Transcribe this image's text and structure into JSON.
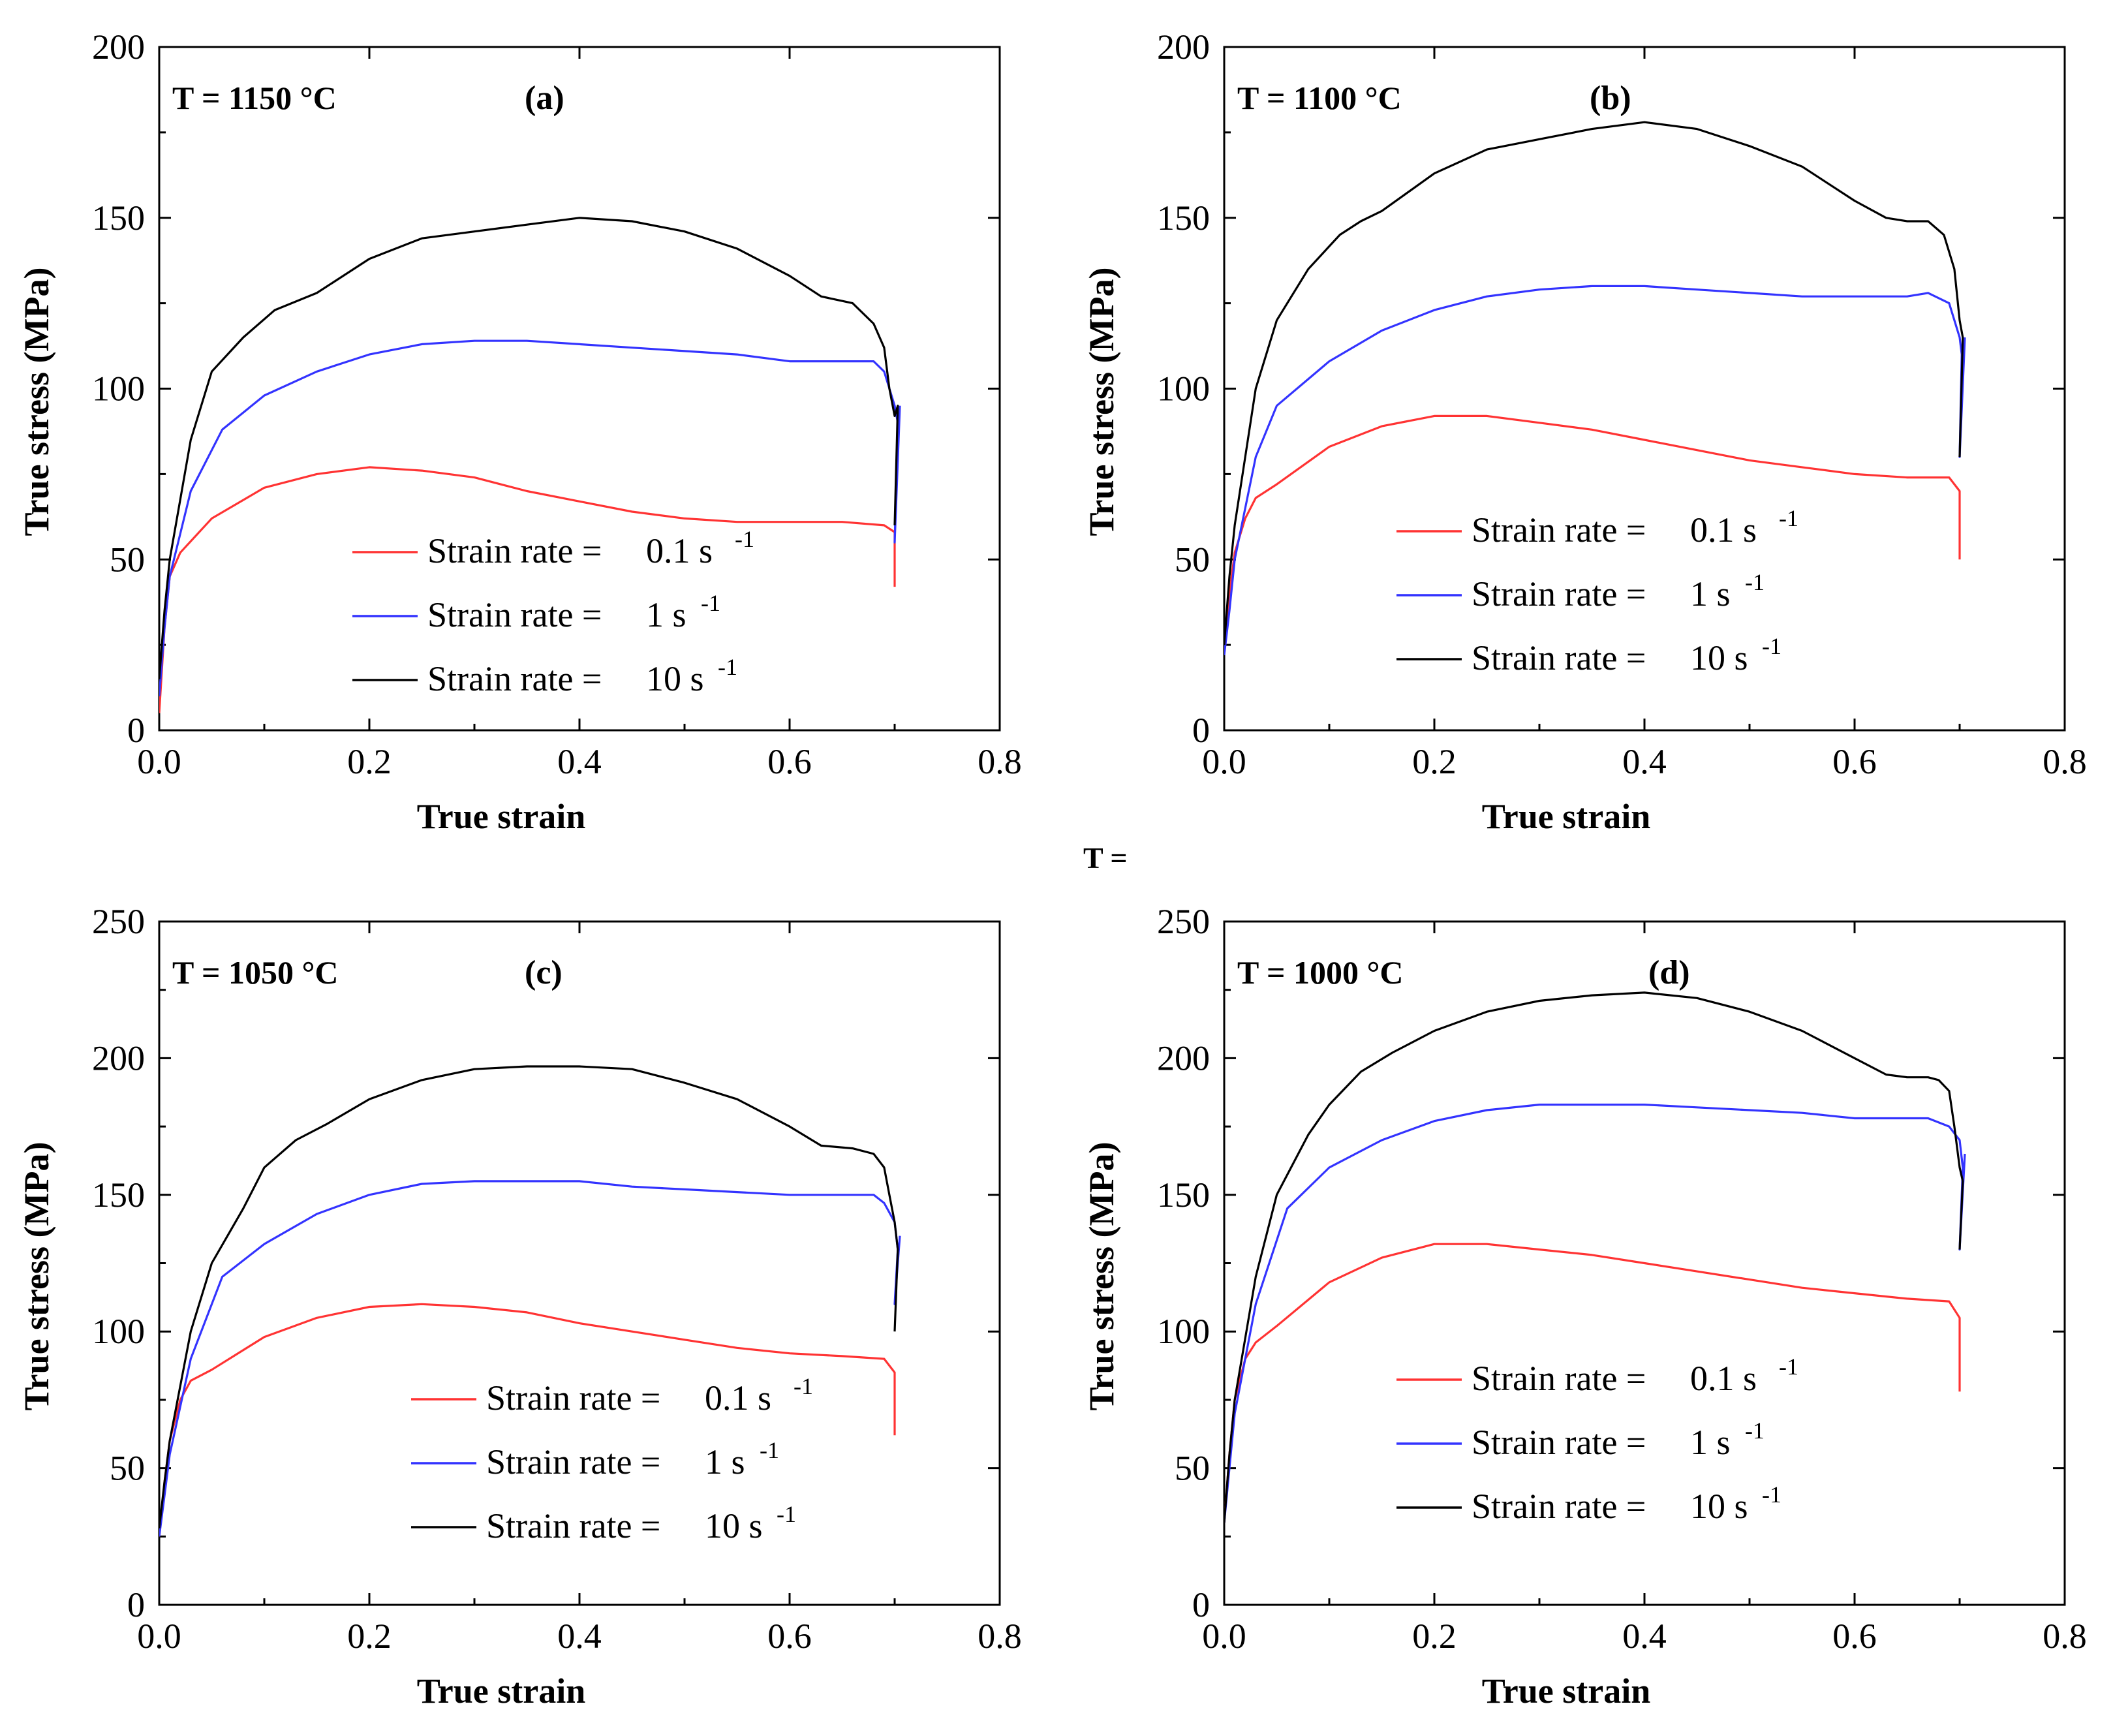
{
  "figure": {
    "stray_text": "T ="
  },
  "chart_data": [
    {
      "type": "line",
      "panel_label": "(a)",
      "temperature_label": "T = 1150 °C",
      "xlabel": "True strain",
      "ylabel": "True stress (MPa)",
      "xlim": [
        0,
        0.8
      ],
      "ylim": [
        0,
        200
      ],
      "xticks": [
        0.0,
        0.2,
        0.4,
        0.6,
        0.8
      ],
      "xtick_labels": [
        "0.0",
        "0.2",
        "0.4",
        "0.6",
        "0.8"
      ],
      "yticks": [
        0,
        50,
        100,
        150,
        200
      ],
      "ytick_labels": [
        "0",
        "50",
        "100",
        "150",
        "200"
      ],
      "legend_position": "lower-center",
      "series": [
        {
          "name": "Strain rate = 0.1 s-1",
          "legend_prefix": "Strain rate =",
          "legend_value": "0.1 s",
          "legend_sup": "-1",
          "color": "#ff3333",
          "x": [
            0,
            0.005,
            0.01,
            0.02,
            0.05,
            0.1,
            0.15,
            0.2,
            0.25,
            0.3,
            0.35,
            0.4,
            0.45,
            0.5,
            0.55,
            0.6,
            0.65,
            0.69,
            0.7,
            0.7
          ],
          "y": [
            5,
            30,
            45,
            52,
            62,
            71,
            75,
            77,
            76,
            74,
            70,
            67,
            64,
            62,
            61,
            61,
            61,
            60,
            58,
            42
          ]
        },
        {
          "name": "Strain rate = 1 s-1",
          "legend_prefix": "Strain rate =",
          "legend_value": "1 s",
          "legend_sup": "-1",
          "color": "#3333ff",
          "x": [
            0,
            0.005,
            0.01,
            0.03,
            0.06,
            0.1,
            0.15,
            0.2,
            0.25,
            0.3,
            0.35,
            0.4,
            0.45,
            0.5,
            0.55,
            0.6,
            0.65,
            0.68,
            0.69,
            0.7,
            0.703,
            0.7,
            0.705
          ],
          "y": [
            10,
            30,
            45,
            70,
            88,
            98,
            105,
            110,
            113,
            114,
            114,
            113,
            112,
            111,
            110,
            108,
            108,
            108,
            105,
            95,
            90,
            55,
            95
          ]
        },
        {
          "name": "Strain rate = 10 s-1",
          "legend_prefix": "Strain rate =",
          "legend_value": "10 s",
          "legend_sup": "-1",
          "color": "#000000",
          "x": [
            0,
            0.005,
            0.01,
            0.03,
            0.05,
            0.08,
            0.11,
            0.15,
            0.2,
            0.25,
            0.3,
            0.35,
            0.4,
            0.45,
            0.5,
            0.55,
            0.6,
            0.63,
            0.66,
            0.68,
            0.69,
            0.695,
            0.7,
            0.703,
            0.7
          ],
          "y": [
            15,
            35,
            50,
            85,
            105,
            115,
            123,
            128,
            138,
            144,
            146,
            148,
            150,
            149,
            146,
            141,
            133,
            127,
            125,
            119,
            112,
            100,
            92,
            95,
            60
          ]
        }
      ]
    },
    {
      "type": "line",
      "panel_label": "(b)",
      "temperature_label": "T = 1100 °C",
      "xlabel": "True strain",
      "ylabel": "True stress (MPa)",
      "xlim": [
        0,
        0.8
      ],
      "ylim": [
        0,
        200
      ],
      "xticks": [
        0.0,
        0.2,
        0.4,
        0.6,
        0.8
      ],
      "xtick_labels": [
        "0.0",
        "0.2",
        "0.4",
        "0.6",
        "0.8"
      ],
      "yticks": [
        0,
        50,
        100,
        150,
        200
      ],
      "ytick_labels": [
        "0",
        "50",
        "100",
        "150",
        "200"
      ],
      "legend_position": "lower-right",
      "series": [
        {
          "name": "Strain rate = 0.1 s-1",
          "legend_prefix": "Strain rate =",
          "legend_value": "0.1 s",
          "legend_sup": "-1",
          "color": "#ff3333",
          "x": [
            0,
            0.005,
            0.01,
            0.02,
            0.03,
            0.05,
            0.1,
            0.15,
            0.2,
            0.25,
            0.3,
            0.35,
            0.4,
            0.45,
            0.5,
            0.55,
            0.6,
            0.65,
            0.69,
            0.7,
            0.7
          ],
          "y": [
            25,
            40,
            52,
            62,
            68,
            72,
            83,
            89,
            92,
            92,
            90,
            88,
            85,
            82,
            79,
            77,
            75,
            74,
            74,
            70,
            50
          ]
        },
        {
          "name": "Strain rate = 1 s-1",
          "legend_prefix": "Strain rate =",
          "legend_value": "1 s",
          "legend_sup": "-1",
          "color": "#3333ff",
          "x": [
            0,
            0.005,
            0.01,
            0.03,
            0.05,
            0.1,
            0.15,
            0.2,
            0.25,
            0.3,
            0.35,
            0.4,
            0.45,
            0.5,
            0.55,
            0.6,
            0.65,
            0.67,
            0.69,
            0.7,
            0.702,
            0.7,
            0.705
          ],
          "y": [
            22,
            35,
            50,
            80,
            95,
            108,
            117,
            123,
            127,
            129,
            130,
            130,
            129,
            128,
            127,
            127,
            127,
            128,
            125,
            115,
            110,
            80,
            115
          ]
        },
        {
          "name": "Strain rate = 10 s-1",
          "legend_prefix": "Strain rate =",
          "legend_value": "10 s",
          "legend_sup": "-1",
          "color": "#000000",
          "x": [
            0,
            0.005,
            0.01,
            0.03,
            0.05,
            0.08,
            0.11,
            0.13,
            0.15,
            0.2,
            0.25,
            0.3,
            0.35,
            0.4,
            0.45,
            0.5,
            0.55,
            0.6,
            0.63,
            0.65,
            0.67,
            0.685,
            0.695,
            0.7,
            0.703,
            0.7
          ],
          "y": [
            25,
            45,
            60,
            100,
            120,
            135,
            145,
            149,
            152,
            163,
            170,
            173,
            176,
            178,
            176,
            171,
            165,
            155,
            150,
            149,
            149,
            145,
            135,
            120,
            115,
            80
          ]
        }
      ]
    },
    {
      "type": "line",
      "panel_label": "(c)",
      "temperature_label": "T = 1050 °C",
      "xlabel": "True strain",
      "ylabel": "True stress (MPa)",
      "xlim": [
        0,
        0.8
      ],
      "ylim": [
        0,
        250
      ],
      "xticks": [
        0.0,
        0.2,
        0.4,
        0.6,
        0.8
      ],
      "xtick_labels": [
        "0.0",
        "0.2",
        "0.4",
        "0.6",
        "0.8"
      ],
      "yticks": [
        0,
        50,
        100,
        150,
        200,
        250
      ],
      "ytick_labels": [
        "0",
        "50",
        "100",
        "150",
        "200",
        "250"
      ],
      "legend_position": "lower-right",
      "series": [
        {
          "name": "Strain rate = 0.1 s-1",
          "legend_prefix": "Strain rate =",
          "legend_value": "0.1 s",
          "legend_sup": "-1",
          "color": "#ff3333",
          "x": [
            0,
            0.005,
            0.01,
            0.02,
            0.03,
            0.05,
            0.1,
            0.15,
            0.2,
            0.25,
            0.3,
            0.35,
            0.4,
            0.45,
            0.5,
            0.55,
            0.6,
            0.65,
            0.69,
            0.7,
            0.7
          ],
          "y": [
            25,
            45,
            60,
            75,
            82,
            86,
            98,
            105,
            109,
            110,
            109,
            107,
            103,
            100,
            97,
            94,
            92,
            91,
            90,
            85,
            62
          ]
        },
        {
          "name": "Strain rate = 1 s-1",
          "legend_prefix": "Strain rate =",
          "legend_value": "1 s",
          "legend_sup": "-1",
          "color": "#3333ff",
          "x": [
            0,
            0.005,
            0.01,
            0.03,
            0.06,
            0.1,
            0.15,
            0.2,
            0.25,
            0.3,
            0.35,
            0.4,
            0.45,
            0.5,
            0.55,
            0.6,
            0.65,
            0.68,
            0.69,
            0.7,
            0.703,
            0.7,
            0.705
          ],
          "y": [
            25,
            40,
            55,
            90,
            120,
            132,
            143,
            150,
            154,
            155,
            155,
            155,
            153,
            152,
            151,
            150,
            150,
            150,
            147,
            140,
            130,
            110,
            135
          ]
        },
        {
          "name": "Strain rate = 10 s-1",
          "legend_prefix": "Strain rate =",
          "legend_value": "10 s",
          "legend_sup": "-1",
          "color": "#000000",
          "x": [
            0,
            0.005,
            0.01,
            0.03,
            0.05,
            0.08,
            0.1,
            0.13,
            0.16,
            0.2,
            0.25,
            0.3,
            0.35,
            0.4,
            0.45,
            0.5,
            0.55,
            0.6,
            0.63,
            0.66,
            0.68,
            0.69,
            0.695,
            0.7,
            0.703,
            0.7
          ],
          "y": [
            28,
            45,
            60,
            100,
            125,
            145,
            160,
            170,
            176,
            185,
            192,
            196,
            197,
            197,
            196,
            191,
            185,
            175,
            168,
            167,
            165,
            160,
            150,
            140,
            130,
            100
          ]
        }
      ]
    },
    {
      "type": "line",
      "panel_label": "(d)",
      "temperature_label": "T = 1000 °C",
      "xlabel": "True strain",
      "ylabel": "True stress (MPa)",
      "xlim": [
        0,
        0.8
      ],
      "ylim": [
        0,
        250
      ],
      "xticks": [
        0.0,
        0.2,
        0.4,
        0.6,
        0.8
      ],
      "xtick_labels": [
        "0.0",
        "0.2",
        "0.4",
        "0.6",
        "0.8"
      ],
      "yticks": [
        0,
        50,
        100,
        150,
        200,
        250
      ],
      "ytick_labels": [
        "0",
        "50",
        "100",
        "150",
        "200",
        "250"
      ],
      "legend_position": "lower-right",
      "series": [
        {
          "name": "Strain rate = 0.1 s-1",
          "legend_prefix": "Strain rate =",
          "legend_value": "0.1 s",
          "legend_sup": "-1",
          "color": "#ff3333",
          "x": [
            0,
            0.005,
            0.01,
            0.02,
            0.03,
            0.05,
            0.1,
            0.15,
            0.2,
            0.25,
            0.3,
            0.35,
            0.4,
            0.45,
            0.5,
            0.55,
            0.6,
            0.65,
            0.69,
            0.7,
            0.7
          ],
          "y": [
            30,
            55,
            75,
            90,
            96,
            102,
            118,
            127,
            132,
            132,
            130,
            128,
            125,
            122,
            119,
            116,
            114,
            112,
            111,
            105,
            78
          ]
        },
        {
          "name": "Strain rate = 1 s-1",
          "legend_prefix": "Strain rate =",
          "legend_value": "1 s",
          "legend_sup": "-1",
          "color": "#3333ff",
          "x": [
            0,
            0.005,
            0.01,
            0.03,
            0.06,
            0.1,
            0.15,
            0.2,
            0.25,
            0.3,
            0.35,
            0.4,
            0.45,
            0.5,
            0.55,
            0.6,
            0.65,
            0.67,
            0.69,
            0.7,
            0.703,
            0.7,
            0.705
          ],
          "y": [
            30,
            50,
            70,
            110,
            145,
            160,
            170,
            177,
            181,
            183,
            183,
            183,
            182,
            181,
            180,
            178,
            178,
            178,
            175,
            170,
            160,
            130,
            165
          ]
        },
        {
          "name": "Strain rate = 10 s-1",
          "legend_prefix": "Strain rate =",
          "legend_value": "10 s",
          "legend_sup": "-1",
          "color": "#000000",
          "x": [
            0,
            0.005,
            0.01,
            0.03,
            0.05,
            0.08,
            0.1,
            0.13,
            0.16,
            0.2,
            0.25,
            0.3,
            0.35,
            0.4,
            0.45,
            0.5,
            0.55,
            0.6,
            0.63,
            0.65,
            0.67,
            0.68,
            0.69,
            0.695,
            0.7,
            0.703,
            0.7
          ],
          "y": [
            30,
            55,
            75,
            120,
            150,
            172,
            183,
            195,
            202,
            210,
            217,
            221,
            223,
            224,
            222,
            217,
            210,
            200,
            194,
            193,
            193,
            192,
            188,
            175,
            160,
            155,
            130
          ]
        }
      ]
    }
  ]
}
